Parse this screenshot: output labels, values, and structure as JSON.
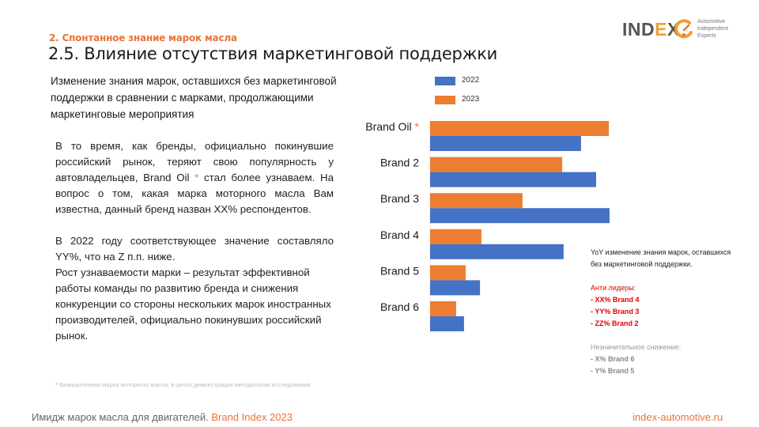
{
  "header": {
    "section_label": "2. Спонтанное знание марок масла",
    "title": "2.5. Влияние отсутствия маркетинговой поддержки"
  },
  "logo": {
    "word_pre": "IND",
    "word_e": "E",
    "word_post": "X",
    "tagline_1": "Automotive",
    "tagline_2": "Independent",
    "tagline_3": "Experts"
  },
  "subtitle": "Изменение знания марок, оставшихся без маркетинговой поддержки в сравнении с марками, продолжающими маркетинговые мероприятия",
  "body": {
    "p1_a": "В то время, как бренды, официально покинувшие российский рынок, теряют свою популярность у автовладельцев, Brand Oil ",
    "p1_star": "*",
    "p1_b": " стал более узнаваем. На вопрос о том, какая марка моторного масла Вам известна, данный бренд назван XX% респондентов.",
    "p2": "В 2022 году соответствующее значение составляло YY%, что на Z п.п. ниже.",
    "p3": "Рост узнаваемости марки – результат эффективной работы команды по развитию бренда и снижения  конкуренции со стороны нескольких марок иностранных производителей, официально покинувших российский рынок."
  },
  "footnote": {
    "star": "*",
    "text": "Вымышленная марка моторного масла, в целях демонстрации методологии исследования"
  },
  "note": {
    "intro": "YoY изменение знания марок, оставшихся без маркетинговой поддержки.",
    "anti_title": "Анти лидеры:",
    "anti_items": [
      "- XX% Brand 4",
      "- YY% Brand 3",
      "- ZZ% Brand 2"
    ],
    "minor_title": "Незначительное снижение:",
    "minor_items": [
      "- X% Brand 6",
      "- Y% Brand 5"
    ]
  },
  "footer": {
    "left_text": "Имидж марок масла для двигателей. ",
    "left_accent": "Brand Index 2023",
    "right_text": "index-automotive.ru"
  },
  "colors": {
    "accent": "#e8743b",
    "series_2022": "#4472c4",
    "series_2023": "#ed7d31",
    "alert": "#e00000"
  },
  "chart_data": {
    "type": "bar",
    "orientation": "horizontal",
    "title": "",
    "xlabel": "",
    "ylabel": "",
    "grid": false,
    "legend_position": "top",
    "value_units": "relative (no axis shown; Brand 3 2022 = 100)",
    "xlim": [
      0,
      100
    ],
    "categories": [
      "Brand Oil",
      "Brand 2",
      "Brand 3",
      "Brand 4",
      "Brand 5",
      "Brand 6"
    ],
    "category_markers": [
      "*",
      "",
      "",
      "",
      "",
      ""
    ],
    "series": [
      {
        "name": "2023",
        "color": "#ed7d31",
        "values": [
          99.6,
          73.6,
          51.5,
          28.6,
          19.8,
          14.5
        ]
      },
      {
        "name": "2022",
        "color": "#4472c4",
        "values": [
          84.1,
          92.5,
          100,
          74.4,
          27.8,
          18.9
        ]
      }
    ],
    "legend": [
      {
        "name": "2022",
        "color": "#4472c4"
      },
      {
        "name": "2023",
        "color": "#ed7d31"
      }
    ]
  }
}
